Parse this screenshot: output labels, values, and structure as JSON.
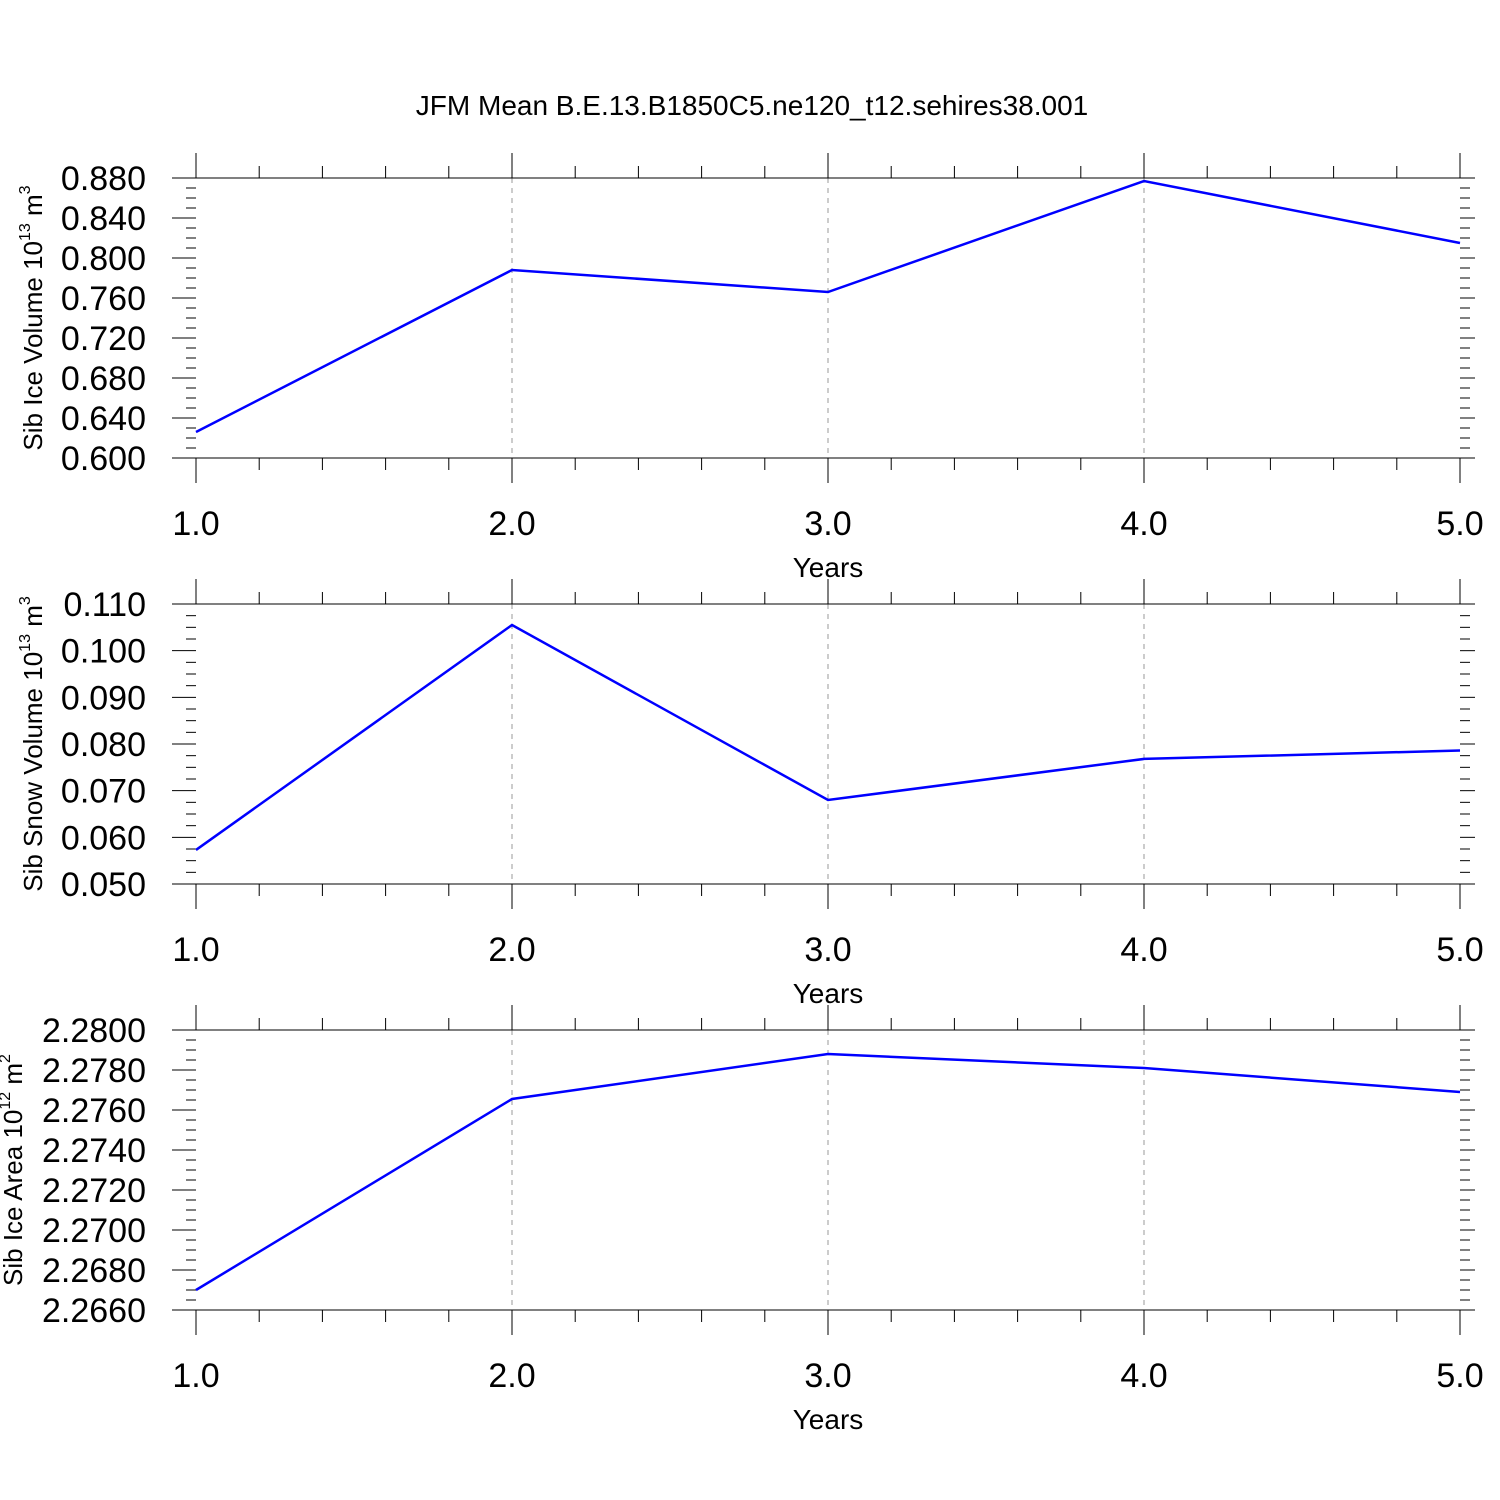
{
  "figure": {
    "title": "JFM Mean B.E.13.B1850C5.ne120_t12.sehires38.001"
  },
  "chart_data": [
    {
      "type": "line",
      "title": "JFM Mean B.E.13.B1850C5.ne120_t12.sehires38.001",
      "xlabel": "Years",
      "ylabel": {
        "text": "Sib Ice Volume 10",
        "exp": "13",
        "unit": " m",
        "unit_exp": "3"
      },
      "x": [
        1.0,
        2.0,
        3.0,
        4.0,
        5.0
      ],
      "series": [
        {
          "values": [
            0.626,
            0.788,
            0.766,
            0.877,
            0.815
          ]
        }
      ],
      "xlim": [
        1.0,
        5.0
      ],
      "ylim": [
        0.6,
        0.88
      ],
      "xticks": [
        "1.0",
        "2.0",
        "3.0",
        "4.0",
        "5.0"
      ],
      "yticks": [
        "0.600",
        "0.640",
        "0.680",
        "0.720",
        "0.760",
        "0.800",
        "0.840",
        "0.880"
      ],
      "line_color": "#0000ff",
      "grid": "vertical dashed"
    },
    {
      "type": "line",
      "xlabel": "Years",
      "ylabel": {
        "text": "Sib Snow Volume 10",
        "exp": "13",
        "unit": " m",
        "unit_exp": "3"
      },
      "x": [
        1.0,
        2.0,
        3.0,
        4.0,
        5.0
      ],
      "series": [
        {
          "values": [
            0.0573,
            0.1055,
            0.068,
            0.0768,
            0.0786
          ]
        }
      ],
      "xlim": [
        1.0,
        5.0
      ],
      "ylim": [
        0.05,
        0.11
      ],
      "xticks": [
        "1.0",
        "2.0",
        "3.0",
        "4.0",
        "5.0"
      ],
      "yticks": [
        "0.050",
        "0.060",
        "0.070",
        "0.080",
        "0.090",
        "0.100",
        "0.110"
      ],
      "line_color": "#0000ff",
      "grid": "vertical dashed"
    },
    {
      "type": "line",
      "xlabel": "Years",
      "ylabel": {
        "text": "Sib Ice Area 10",
        "exp": "12",
        "unit": " m",
        "unit_exp": "2"
      },
      "x": [
        1.0,
        2.0,
        3.0,
        4.0,
        5.0
      ],
      "series": [
        {
          "values": [
            2.267,
            2.27655,
            2.2788,
            2.2781,
            2.2769
          ]
        }
      ],
      "xlim": [
        1.0,
        5.0
      ],
      "ylim": [
        2.266,
        2.28
      ],
      "xticks": [
        "1.0",
        "2.0",
        "3.0",
        "4.0",
        "5.0"
      ],
      "yticks": [
        "2.2660",
        "2.2680",
        "2.2700",
        "2.2720",
        "2.2740",
        "2.2760",
        "2.2780",
        "2.2800"
      ],
      "line_color": "#0000ff",
      "grid": "vertical dashed"
    }
  ]
}
